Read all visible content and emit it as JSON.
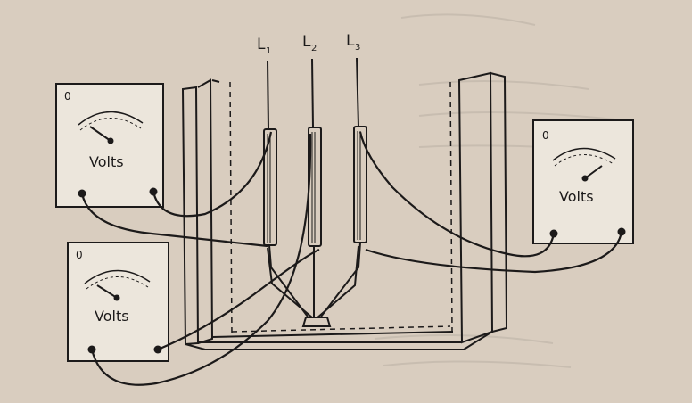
{
  "lines": [
    "L1",
    "L2",
    "L3"
  ],
  "line_subscripts": [
    "1",
    "2",
    "3"
  ],
  "line_letter": "L",
  "meters": [
    {
      "label": "Volts",
      "corner_mark": "0"
    },
    {
      "label": "Volts",
      "corner_mark": "0"
    },
    {
      "label": "Volts",
      "corner_mark": "0"
    }
  ],
  "colors": {
    "paper": "#d9cdbf",
    "ink": "#1c1a1a",
    "meter_face": "#ece6dc"
  }
}
